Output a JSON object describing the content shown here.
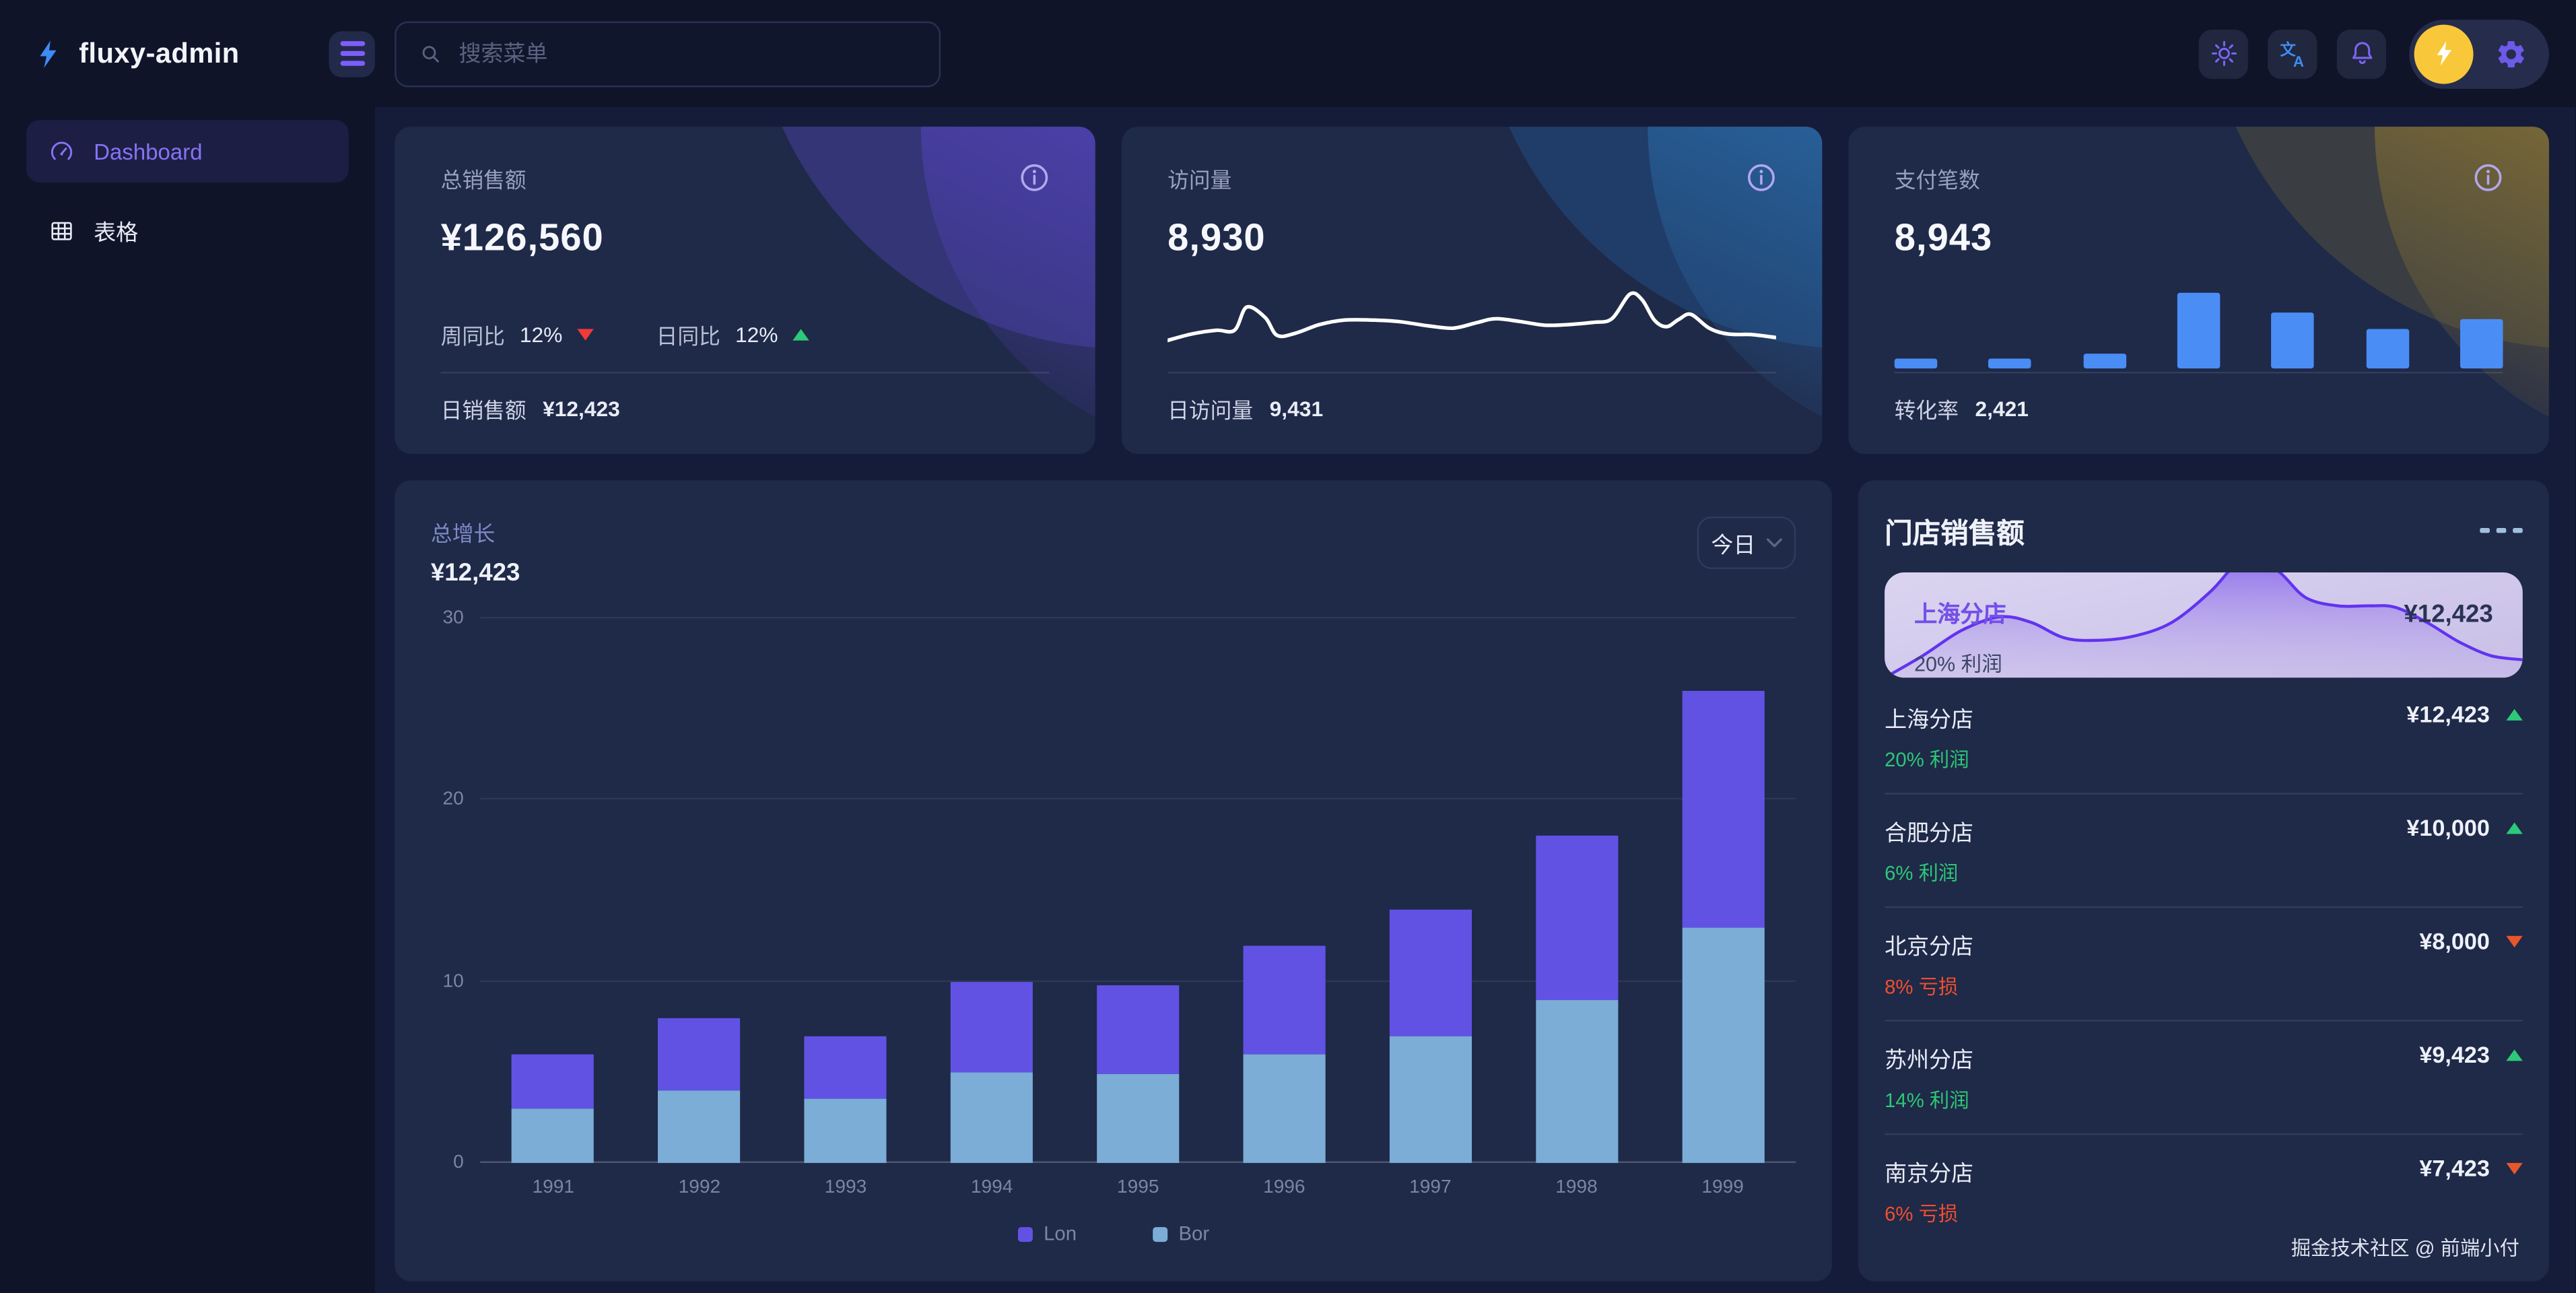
{
  "brand": {
    "name": "fluxy-admin"
  },
  "topbar": {
    "search_placeholder": "搜索菜单"
  },
  "sidebar": {
    "items": [
      {
        "label": "Dashboard",
        "icon": "gauge-icon",
        "active": true
      },
      {
        "label": "表格",
        "icon": "table-icon",
        "active": false
      }
    ]
  },
  "stat_cards": [
    {
      "title": "总销售额",
      "value": "¥126,560",
      "metrics": [
        {
          "label": "周同比",
          "value": "12%",
          "trend": "down"
        },
        {
          "label": "日同比",
          "value": "12%",
          "trend": "up"
        }
      ],
      "footer_label": "日销售额",
      "footer_value": "¥12,423"
    },
    {
      "title": "访问量",
      "value": "8,930",
      "footer_label": "日访问量",
      "footer_value": "9,431",
      "sparkline": [
        [
          0,
          16
        ],
        [
          4,
          25
        ],
        [
          8,
          30
        ],
        [
          11,
          30
        ],
        [
          13,
          62
        ],
        [
          16,
          48
        ],
        [
          18,
          23
        ],
        [
          21,
          26
        ],
        [
          25,
          38
        ],
        [
          29,
          44
        ],
        [
          34,
          44
        ],
        [
          38,
          42
        ],
        [
          43,
          36
        ],
        [
          47,
          33
        ],
        [
          51,
          41
        ],
        [
          54,
          46
        ],
        [
          58,
          42
        ],
        [
          62,
          37
        ],
        [
          66,
          38
        ],
        [
          70,
          41
        ],
        [
          73,
          46
        ],
        [
          76,
          80
        ],
        [
          78,
          72
        ],
        [
          80,
          44
        ],
        [
          82,
          35
        ],
        [
          84,
          45
        ],
        [
          86,
          52
        ],
        [
          89,
          33
        ],
        [
          92,
          25
        ],
        [
          96,
          24
        ],
        [
          100,
          20
        ]
      ]
    },
    {
      "title": "支付笔数",
      "value": "8,943",
      "footer_label": "转化率",
      "footer_value": "2,421",
      "bars": [
        13,
        12,
        20,
        100,
        75,
        53,
        66
      ]
    }
  ],
  "growth_chart": {
    "type": "stacked-bar",
    "title": "总增长",
    "value": "¥12,423",
    "range_label": "今日",
    "categories": [
      "1991",
      "1992",
      "1993",
      "1994",
      "1995",
      "1996",
      "1997",
      "1998",
      "1999"
    ],
    "series": [
      {
        "name": "Lon",
        "color": "#6152e4",
        "values": [
          3,
          4,
          3.5,
          5,
          4.9,
          6,
          7,
          9,
          13
        ]
      },
      {
        "name": "Bor",
        "color": "#7badd7",
        "values": [
          3,
          4,
          3.5,
          5,
          4.9,
          6,
          7,
          9,
          13
        ]
      }
    ],
    "y_ticks": [
      0,
      10,
      20,
      30
    ],
    "y_max": 30,
    "legend_position": "bottom"
  },
  "store_panel": {
    "title": "门店销售额",
    "highlight": {
      "name": "上海分店",
      "value": "¥12,423",
      "note": "20% 利润",
      "area": [
        [
          0,
          0
        ],
        [
          6,
          16
        ],
        [
          12,
          34
        ],
        [
          18,
          44
        ],
        [
          23,
          40
        ],
        [
          28,
          29
        ],
        [
          33,
          27
        ],
        [
          39,
          30
        ],
        [
          45,
          40
        ],
        [
          51,
          62
        ],
        [
          55,
          82
        ],
        [
          58,
          88
        ],
        [
          62,
          76
        ],
        [
          66,
          58
        ],
        [
          71,
          52
        ],
        [
          76,
          52
        ],
        [
          80,
          51
        ],
        [
          85,
          40
        ],
        [
          90,
          26
        ],
        [
          95,
          16
        ],
        [
          100,
          13
        ]
      ]
    },
    "stores": [
      {
        "name": "上海分店",
        "value": "¥12,423",
        "note": "20% 利润",
        "trend": "up",
        "status": "profit"
      },
      {
        "name": "合肥分店",
        "value": "¥10,000",
        "note": "6% 利润",
        "trend": "up",
        "status": "profit"
      },
      {
        "name": "北京分店",
        "value": "¥8,000",
        "note": "8% 亏损",
        "trend": "down",
        "status": "loss"
      },
      {
        "name": "苏州分店",
        "value": "¥9,423",
        "note": "14% 利润",
        "trend": "up",
        "status": "profit"
      },
      {
        "name": "南京分店",
        "value": "¥7,423",
        "note": "6% 亏损",
        "trend": "down",
        "status": "loss"
      }
    ],
    "footer": "掘金技术社区 @ 前端小付"
  },
  "colors": {
    "accent_purple": "#6152e4",
    "bar_blue": "#7badd7",
    "mini_bar_blue": "#4a8df5",
    "green": "#2dc878",
    "red": "#f23a3a",
    "orange_down": "#e8572b",
    "avatar_yellow": "#f8c83a",
    "sidebar_active_text": "#8673f6",
    "highlight_bg": "#cfc6e9",
    "card_bg": "#1f2948",
    "page_bg": "#0f1429"
  }
}
